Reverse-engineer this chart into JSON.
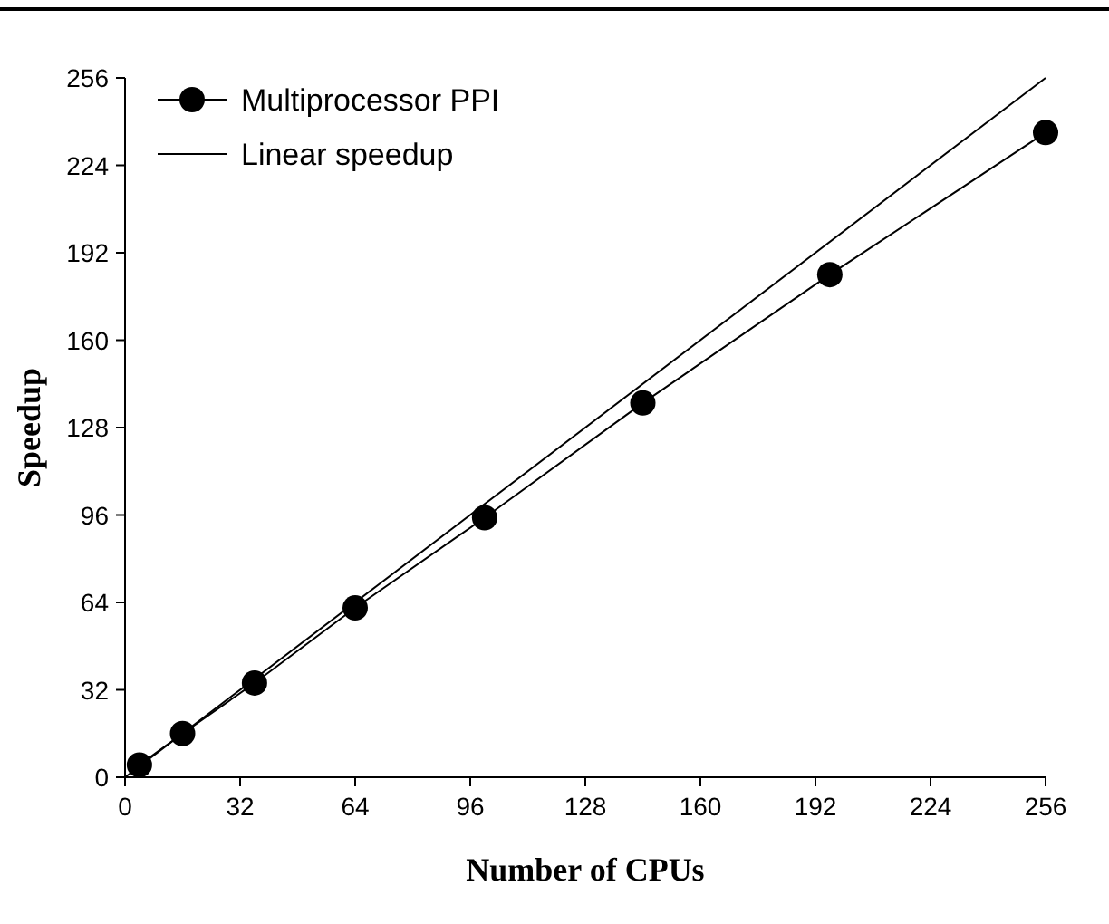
{
  "chart_data": {
    "type": "line",
    "xlabel": "Number of CPUs",
    "ylabel": "Speedup",
    "xlim": [
      0,
      256
    ],
    "ylim": [
      0,
      256
    ],
    "xticks": [
      0,
      32,
      64,
      96,
      128,
      160,
      192,
      224,
      256
    ],
    "yticks": [
      0,
      32,
      64,
      96,
      128,
      160,
      192,
      224,
      256
    ],
    "legend": "top left",
    "grid": false,
    "series": [
      {
        "name": "Multiprocessor PPI",
        "color": "#000000",
        "marker": "circle",
        "x": [
          4,
          16,
          36,
          64,
          100,
          144,
          196,
          256
        ],
        "values": [
          4.5,
          16,
          34.5,
          62,
          95,
          137,
          184,
          236
        ]
      },
      {
        "name": "Linear speedup",
        "color": "#000000",
        "marker": "none",
        "x": [
          0,
          256
        ],
        "values": [
          0,
          256
        ]
      }
    ]
  }
}
